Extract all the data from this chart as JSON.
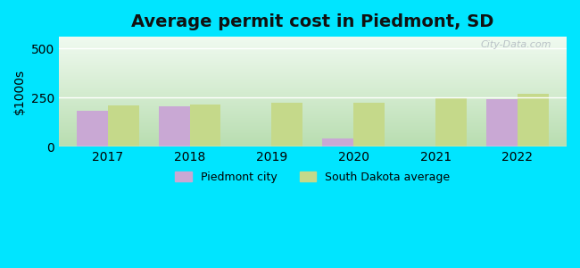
{
  "title": "Average permit cost in Piedmont, SD",
  "ylabel": "$1000s",
  "years": [
    2017,
    2018,
    2019,
    2020,
    2021,
    2022
  ],
  "piedmont_values": [
    185,
    205,
    null,
    40,
    null,
    240
  ],
  "sd_values": [
    210,
    215,
    225,
    225,
    253,
    268
  ],
  "ylim": [
    0,
    560
  ],
  "yticks": [
    0,
    250,
    500
  ],
  "bar_width": 0.38,
  "piedmont_color": "#c9a8d4",
  "sd_color": "#c5d98a",
  "outer_bg_color": "#00e5ff",
  "title_fontsize": 14,
  "axis_fontsize": 10,
  "legend_fontsize": 9,
  "watermark": "City-Data.com"
}
